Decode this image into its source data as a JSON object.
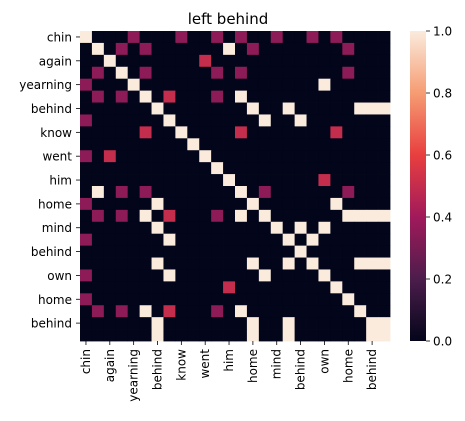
{
  "chart_data": {
    "type": "heatmap",
    "title": "left behind",
    "xlabel": "",
    "ylabel": "",
    "x_tick_labels": [
      "chin",
      "again",
      "yearning",
      "behind",
      "know",
      "went",
      "him",
      "home",
      "mind",
      "behind",
      "own",
      "home",
      "behind"
    ],
    "y_tick_labels": [
      "chin",
      "again",
      "yearning",
      "behind",
      "know",
      "went",
      "him",
      "home",
      "mind",
      "behind",
      "own",
      "home",
      "behind"
    ],
    "row_labels": [
      "chin",
      "again",
      "again",
      "yearning",
      "yearning",
      "behind",
      "behind",
      "know",
      "know",
      "went",
      "went",
      "him",
      "him",
      "home",
      "home",
      "mind",
      "mind",
      "behind",
      "behind",
      "own",
      "own",
      "home",
      "home",
      "behind",
      "behind",
      "behind"
    ],
    "col_labels": [
      "chin",
      "again",
      "again",
      "yearning",
      "yearning",
      "behind",
      "behind",
      "know",
      "know",
      "went",
      "went",
      "him",
      "him",
      "home",
      "home",
      "mind",
      "mind",
      "behind",
      "behind",
      "own",
      "own",
      "home",
      "home",
      "behind",
      "behind",
      "behind"
    ],
    "values": [
      [
        1.0,
        0.0,
        0.0,
        0.0,
        0.35,
        0.0,
        0.0,
        0.0,
        0.35,
        0.0,
        0.0,
        0.35,
        0.0,
        0.35,
        0.0,
        0.0,
        0.35,
        0.0,
        0.0,
        0.35,
        0.0,
        0.35,
        0.0,
        0.0,
        0.0,
        0.0
      ],
      [
        0.0,
        1.0,
        0.0,
        0.35,
        0.0,
        0.35,
        0.0,
        0.0,
        0.0,
        0.0,
        0.0,
        0.0,
        1.0,
        0.0,
        0.35,
        0.0,
        0.0,
        0.0,
        0.0,
        0.0,
        0.0,
        0.0,
        0.35,
        0.0,
        0.0,
        0.0
      ],
      [
        0.0,
        0.0,
        1.0,
        0.0,
        0.0,
        0.0,
        0.0,
        0.0,
        0.0,
        0.0,
        0.5,
        0.0,
        0.0,
        0.0,
        0.0,
        0.0,
        0.0,
        0.0,
        0.0,
        0.0,
        0.0,
        0.0,
        0.0,
        0.0,
        0.0,
        0.0
      ],
      [
        0.0,
        0.35,
        0.0,
        1.0,
        0.0,
        0.35,
        0.0,
        0.0,
        0.0,
        0.0,
        0.0,
        0.35,
        0.0,
        0.35,
        0.0,
        0.0,
        0.0,
        0.0,
        0.0,
        0.0,
        0.0,
        0.0,
        0.35,
        0.0,
        0.0,
        0.0
      ],
      [
        0.35,
        0.0,
        0.0,
        0.0,
        1.0,
        0.0,
        0.0,
        0.0,
        0.0,
        0.0,
        0.0,
        0.0,
        0.0,
        0.0,
        0.0,
        0.0,
        0.0,
        0.0,
        0.0,
        0.0,
        1.0,
        0.0,
        0.0,
        0.0,
        0.0,
        0.0
      ],
      [
        0.0,
        0.35,
        0.0,
        0.35,
        0.0,
        1.0,
        0.0,
        0.5,
        0.0,
        0.0,
        0.0,
        0.35,
        0.0,
        1.0,
        0.0,
        0.0,
        0.0,
        0.0,
        0.0,
        0.0,
        0.0,
        0.0,
        0.0,
        0.0,
        0.0,
        0.0
      ],
      [
        0.0,
        0.0,
        0.0,
        0.0,
        0.0,
        0.0,
        1.0,
        0.0,
        0.0,
        0.0,
        0.0,
        0.0,
        0.0,
        0.0,
        1.0,
        0.0,
        0.0,
        1.0,
        0.0,
        0.0,
        0.0,
        0.0,
        0.0,
        1.0,
        1.0,
        1.0
      ],
      [
        0.35,
        0.0,
        0.0,
        0.0,
        0.0,
        0.0,
        0.0,
        1.0,
        0.0,
        0.0,
        0.0,
        0.0,
        0.0,
        0.0,
        0.0,
        1.0,
        0.0,
        0.0,
        1.0,
        0.0,
        0.0,
        0.0,
        0.0,
        0.0,
        0.0,
        0.0
      ],
      [
        0.0,
        0.0,
        0.0,
        0.0,
        0.0,
        0.5,
        0.0,
        0.0,
        1.0,
        0.0,
        0.0,
        0.0,
        0.0,
        0.5,
        0.0,
        0.0,
        0.0,
        0.0,
        0.0,
        0.0,
        0.0,
        0.5,
        0.0,
        0.0,
        0.0,
        0.0
      ],
      [
        0.0,
        0.0,
        0.0,
        0.0,
        0.0,
        0.0,
        0.0,
        0.0,
        0.0,
        1.0,
        0.0,
        0.0,
        0.0,
        0.0,
        0.0,
        0.0,
        0.0,
        0.0,
        0.0,
        0.0,
        0.0,
        0.0,
        0.0,
        0.0,
        0.0,
        0.0
      ],
      [
        0.35,
        0.0,
        0.5,
        0.0,
        0.0,
        0.0,
        0.0,
        0.0,
        0.0,
        0.0,
        1.0,
        0.0,
        0.0,
        0.0,
        0.0,
        0.0,
        0.0,
        0.0,
        0.0,
        0.0,
        0.0,
        0.0,
        0.0,
        0.0,
        0.0,
        0.0
      ],
      [
        0.0,
        0.0,
        0.0,
        0.0,
        0.0,
        0.0,
        0.0,
        0.0,
        0.0,
        0.0,
        0.0,
        1.0,
        0.0,
        0.0,
        0.0,
        0.0,
        0.0,
        0.0,
        0.0,
        0.0,
        0.0,
        0.0,
        0.0,
        0.0,
        0.0,
        0.0
      ],
      [
        0.0,
        0.0,
        0.0,
        0.0,
        0.0,
        0.0,
        0.0,
        0.0,
        0.0,
        0.0,
        0.0,
        0.0,
        1.0,
        0.0,
        0.0,
        0.0,
        0.0,
        0.0,
        0.0,
        0.0,
        0.5,
        0.0,
        0.0,
        0.0,
        0.0,
        0.0
      ],
      [
        0.0,
        1.0,
        0.0,
        0.35,
        0.0,
        0.35,
        0.0,
        0.0,
        0.0,
        0.0,
        0.0,
        0.0,
        0.0,
        1.0,
        0.0,
        0.35,
        0.0,
        0.0,
        0.0,
        0.0,
        0.0,
        0.0,
        0.35,
        0.0,
        0.0,
        0.0
      ],
      [
        0.35,
        0.0,
        0.0,
        0.0,
        0.0,
        0.0,
        1.0,
        0.0,
        0.0,
        0.0,
        0.0,
        0.0,
        0.0,
        0.0,
        1.0,
        0.0,
        0.0,
        0.0,
        0.0,
        0.0,
        0.0,
        1.0,
        0.0,
        0.0,
        0.0,
        0.0
      ],
      [
        0.0,
        0.35,
        0.0,
        0.35,
        0.0,
        1.0,
        0.0,
        0.5,
        0.0,
        0.0,
        0.0,
        0.35,
        0.0,
        1.0,
        0.0,
        1.0,
        0.0,
        0.0,
        0.0,
        0.0,
        0.0,
        0.0,
        1.0,
        1.0,
        1.0,
        1.0
      ],
      [
        0.0,
        0.0,
        0.0,
        0.0,
        0.0,
        0.0,
        1.0,
        0.0,
        0.0,
        0.0,
        0.0,
        0.0,
        0.0,
        0.0,
        0.0,
        0.0,
        1.0,
        0.0,
        1.0,
        0.0,
        1.0,
        0.0,
        0.0,
        0.0,
        0.0,
        0.0
      ],
      [
        0.35,
        0.0,
        0.0,
        0.0,
        0.0,
        0.0,
        0.0,
        1.0,
        0.0,
        0.0,
        0.0,
        0.0,
        0.0,
        0.0,
        0.0,
        0.0,
        0.0,
        1.0,
        0.0,
        1.0,
        0.0,
        0.0,
        0.0,
        0.0,
        0.0,
        0.0
      ],
      [
        0.0,
        0.0,
        0.0,
        0.0,
        0.0,
        0.0,
        0.0,
        0.0,
        0.0,
        0.0,
        0.0,
        0.0,
        0.0,
        0.0,
        0.0,
        0.0,
        0.0,
        0.0,
        1.0,
        0.0,
        0.0,
        0.0,
        0.0,
        0.0,
        0.0,
        0.0
      ],
      [
        0.0,
        0.0,
        0.0,
        0.0,
        0.0,
        0.0,
        1.0,
        0.0,
        0.0,
        0.0,
        0.0,
        0.0,
        0.0,
        0.0,
        1.0,
        0.0,
        0.0,
        1.0,
        0.0,
        1.0,
        0.0,
        0.0,
        0.0,
        1.0,
        1.0,
        1.0
      ],
      [
        0.35,
        0.0,
        0.0,
        0.0,
        0.0,
        0.0,
        0.0,
        1.0,
        0.0,
        0.0,
        0.0,
        0.0,
        0.0,
        0.0,
        0.0,
        1.0,
        0.0,
        0.0,
        0.0,
        0.0,
        1.0,
        0.0,
        0.0,
        0.0,
        0.0,
        0.0
      ],
      [
        0.0,
        0.0,
        0.0,
        0.0,
        0.0,
        0.0,
        0.0,
        0.0,
        0.0,
        0.0,
        0.0,
        0.0,
        0.5,
        0.0,
        0.0,
        0.0,
        0.0,
        0.0,
        0.0,
        0.0,
        0.0,
        1.0,
        0.0,
        0.0,
        0.0,
        0.0
      ],
      [
        0.35,
        0.0,
        0.0,
        0.0,
        0.0,
        0.0,
        0.0,
        0.0,
        0.0,
        0.0,
        0.0,
        0.0,
        0.0,
        0.0,
        0.0,
        0.0,
        0.0,
        0.0,
        0.0,
        0.0,
        0.0,
        0.0,
        1.0,
        0.0,
        0.0,
        0.0
      ],
      [
        0.0,
        0.35,
        0.0,
        0.35,
        0.0,
        1.0,
        0.0,
        0.5,
        0.0,
        0.0,
        0.0,
        0.35,
        0.0,
        1.0,
        0.0,
        0.0,
        0.0,
        0.0,
        0.0,
        0.0,
        0.0,
        0.0,
        0.0,
        1.0,
        0.0,
        0.0
      ],
      [
        0.0,
        0.0,
        0.0,
        0.0,
        0.0,
        0.0,
        1.0,
        0.0,
        0.0,
        0.0,
        0.0,
        0.0,
        0.0,
        0.0,
        1.0,
        0.0,
        0.0,
        1.0,
        0.0,
        0.0,
        0.0,
        0.0,
        0.0,
        0.0,
        1.0,
        1.0
      ],
      [
        0.0,
        0.0,
        0.0,
        0.0,
        0.0,
        0.0,
        1.0,
        0.0,
        0.0,
        0.0,
        0.0,
        0.0,
        0.0,
        0.0,
        1.0,
        0.0,
        0.0,
        1.0,
        0.0,
        0.0,
        0.0,
        0.0,
        0.0,
        0.0,
        1.0,
        1.0
      ]
    ],
    "vmin": 0.0,
    "vmax": 1.0,
    "colorbar_ticks": [
      "0.0",
      "0.2",
      "0.4",
      "0.6",
      "0.8",
      "1.0"
    ],
    "colormap": "rocket",
    "colormap_stops": [
      "#03051a",
      "#4c1d4b",
      "#a11a5b",
      "#e83f3f",
      "#f69c73",
      "#faebdd"
    ],
    "grid": false
  }
}
